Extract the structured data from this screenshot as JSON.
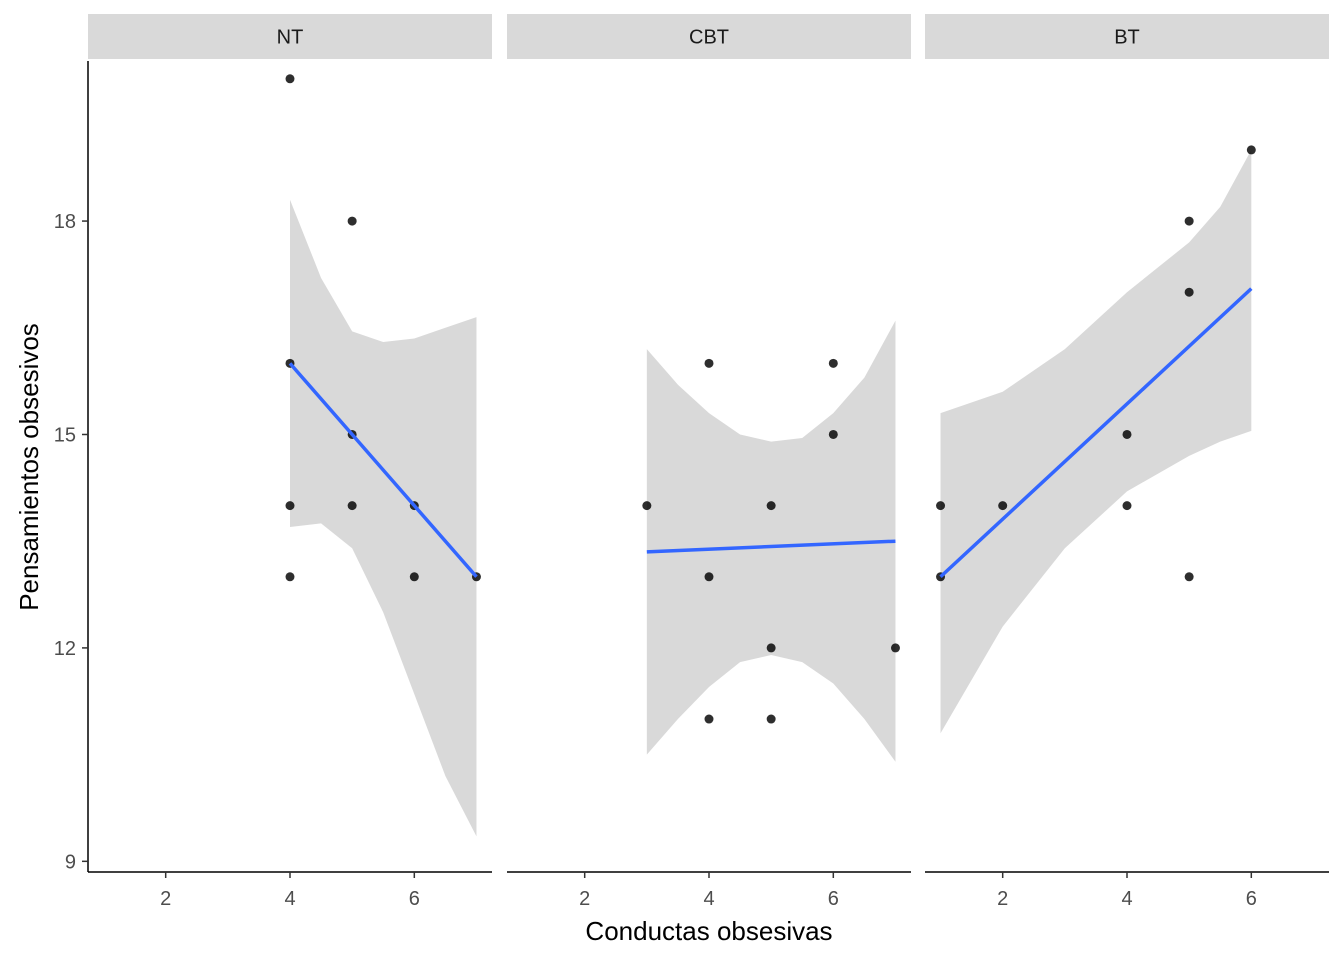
{
  "chart_data": {
    "type": "scatter",
    "xlabel": "Conductas obsesivas",
    "ylabel": "Pensamientos obsesivos",
    "xlim": [
      0.75,
      7.25
    ],
    "ylim": [
      8.85,
      20.25
    ],
    "x_ticks": [
      2,
      4,
      6
    ],
    "y_ticks": [
      9,
      12,
      15,
      18
    ],
    "grid": false,
    "colors": {
      "strip": "#d9d9d9",
      "band": "#d9d9d9",
      "line": "#3366ff",
      "point": "#000000"
    },
    "panels": [
      {
        "name": "NT",
        "points": [
          [
            4,
            20
          ],
          [
            4,
            16
          ],
          [
            4,
            14
          ],
          [
            4,
            13
          ],
          [
            5,
            18
          ],
          [
            5,
            15
          ],
          [
            5,
            14
          ],
          [
            6,
            14
          ],
          [
            6,
            13
          ],
          [
            7,
            13
          ]
        ],
        "fit": {
          "x": [
            4,
            7
          ],
          "y": [
            16.0,
            13.0
          ]
        },
        "ci": {
          "x": [
            4.0,
            4.5,
            5.0,
            5.5,
            6.0,
            6.5,
            7.0
          ],
          "lower": [
            13.7,
            13.75,
            13.4,
            12.5,
            11.35,
            10.2,
            9.35
          ],
          "upper": [
            18.3,
            17.2,
            16.45,
            16.3,
            16.35,
            16.5,
            16.65
          ]
        }
      },
      {
        "name": "CBT",
        "points": [
          [
            3,
            14
          ],
          [
            4,
            16
          ],
          [
            4,
            13
          ],
          [
            4,
            11
          ],
          [
            5,
            14
          ],
          [
            5,
            12
          ],
          [
            5,
            11
          ],
          [
            6,
            16
          ],
          [
            6,
            15
          ],
          [
            7,
            12
          ]
        ],
        "fit": {
          "x": [
            3,
            7
          ],
          "y": [
            13.35,
            13.5
          ]
        },
        "ci": {
          "x": [
            3.0,
            3.5,
            4.0,
            4.5,
            5.0,
            5.5,
            6.0,
            6.5,
            7.0
          ],
          "lower": [
            10.5,
            11.0,
            11.45,
            11.8,
            11.9,
            11.8,
            11.5,
            11.0,
            10.4
          ],
          "upper": [
            16.2,
            15.7,
            15.3,
            15.0,
            14.9,
            14.95,
            15.3,
            15.8,
            16.6
          ]
        }
      },
      {
        "name": "BT",
        "points": [
          [
            1,
            14
          ],
          [
            1,
            13
          ],
          [
            2,
            14
          ],
          [
            4,
            15
          ],
          [
            4,
            14
          ],
          [
            5,
            18
          ],
          [
            5,
            17
          ],
          [
            5,
            13
          ],
          [
            6,
            19
          ]
        ],
        "fit": {
          "x": [
            1,
            6
          ],
          "y": [
            13.0,
            17.05
          ]
        },
        "ci": {
          "x": [
            1.0,
            2.0,
            3.0,
            4.0,
            5.0,
            5.5,
            6.0
          ],
          "lower": [
            10.8,
            12.3,
            13.4,
            14.2,
            14.7,
            14.9,
            15.05
          ],
          "upper": [
            15.3,
            15.6,
            16.2,
            17.0,
            17.7,
            18.2,
            19.0
          ]
        }
      }
    ]
  }
}
